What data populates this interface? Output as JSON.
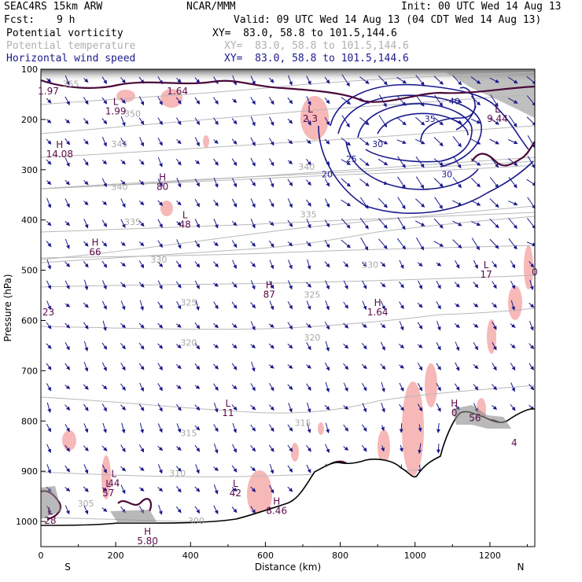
{
  "header": {
    "model": "SEAC4RS 15km ARW",
    "center": "NCAR/MMM",
    "init": "Init: 00 UTC Wed 14 Aug 13",
    "fcst_label": "Fcst:",
    "fcst_value": "9 h",
    "valid": "Valid: 09 UTC Wed 14 Aug 13 (04 CDT Wed 14 Aug 13)",
    "fields": [
      {
        "name": "Potential vorticity",
        "xy": "XY=  83.0, 58.8 to 101.5,144.6",
        "color": "#000000"
      },
      {
        "name": "Potential temperature",
        "xy": "XY=  83.0, 58.8 to 101.5,144.6",
        "color": "#b0b0b0"
      },
      {
        "name": "Horizontal wind speed",
        "xy": "XY=  83.0, 58.8 to 101.5,144.6",
        "color": "#1a1a8c"
      }
    ]
  },
  "chart_data": {
    "type": "cross-section",
    "xlabel": "Distance (km)",
    "ylabel": "Pressure (hPa)",
    "xlim": [
      0,
      1320
    ],
    "ylim": [
      1050,
      100
    ],
    "x_ticks": [
      0,
      200,
      400,
      600,
      800,
      1000,
      1200
    ],
    "y_ticks": [
      100,
      200,
      300,
      400,
      500,
      600,
      700,
      800,
      900,
      1000
    ],
    "x_end_labels": {
      "left": "S",
      "right": "N"
    },
    "theta_labels": [
      {
        "text": "355",
        "x": 80,
        "p": 135
      },
      {
        "text": "350",
        "x": 245,
        "p": 195
      },
      {
        "text": "345",
        "x": 210,
        "p": 255
      },
      {
        "text": "340",
        "x": 210,
        "p": 340
      },
      {
        "text": "340",
        "x": 710,
        "p": 300
      },
      {
        "text": "335",
        "x": 245,
        "p": 410
      },
      {
        "text": "335",
        "x": 715,
        "p": 395
      },
      {
        "text": "330",
        "x": 315,
        "p": 485
      },
      {
        "text": "330",
        "x": 880,
        "p": 495
      },
      {
        "text": "325",
        "x": 395,
        "p": 570
      },
      {
        "text": "325",
        "x": 725,
        "p": 555
      },
      {
        "text": "320",
        "x": 395,
        "p": 650
      },
      {
        "text": "320",
        "x": 725,
        "p": 640
      },
      {
        "text": "315",
        "x": 395,
        "p": 830
      },
      {
        "text": "315",
        "x": 700,
        "p": 810
      },
      {
        "text": "310",
        "x": 365,
        "p": 910
      },
      {
        "text": "305",
        "x": 120,
        "p": 970
      },
      {
        "text": "300",
        "x": 415,
        "p": 1005
      }
    ],
    "wind_labels": [
      {
        "text": "40",
        "x": 1105,
        "p": 170
      },
      {
        "text": "35",
        "x": 1040,
        "p": 205
      },
      {
        "text": "30",
        "x": 900,
        "p": 255
      },
      {
        "text": "30",
        "x": 1085,
        "p": 315
      },
      {
        "text": "25",
        "x": 830,
        "p": 285
      },
      {
        "text": "20",
        "x": 765,
        "p": 315
      }
    ],
    "pv_extrema": [
      {
        "letter": "",
        "value": "1.97",
        "x": 20,
        "p": 150
      },
      {
        "letter": "L",
        "value": "1.99",
        "x": 200,
        "p": 190
      },
      {
        "letter": "",
        "value": "1.64",
        "x": 365,
        "p": 150
      },
      {
        "letter": "L",
        "value": "2.3",
        "x": 720,
        "p": 205
      },
      {
        "letter": "L",
        "value": "9.44",
        "x": 1220,
        "p": 205
      },
      {
        "letter": "H",
        "value": "14.08",
        "x": 50,
        "p": 275
      },
      {
        "letter": "H",
        "value": "80",
        "x": 325,
        "p": 340
      },
      {
        "letter": "L",
        "value": "48",
        "x": 385,
        "p": 415
      },
      {
        "letter": "H",
        "value": "66",
        "x": 145,
        "p": 470
      },
      {
        "letter": "H",
        "value": "87",
        "x": 610,
        "p": 555
      },
      {
        "letter": "H",
        "value": "1.64",
        "x": 900,
        "p": 590
      },
      {
        "letter": "L",
        "value": "17",
        "x": 1190,
        "p": 515
      },
      {
        "letter": "",
        "value": "0",
        "x": 1320,
        "p": 510
      },
      {
        "letter": "",
        "value": "23",
        "x": 20,
        "p": 590
      },
      {
        "letter": "L",
        "value": "11",
        "x": 500,
        "p": 790
      },
      {
        "letter": "H",
        "value": "0",
        "x": 1105,
        "p": 790
      },
      {
        "letter": "",
        "value": "56",
        "x": 1160,
        "p": 800
      },
      {
        "letter": "L",
        "value": "44",
        "x": 195,
        "p": 930
      },
      {
        "letter": "L",
        "value": "57",
        "x": 180,
        "p": 950
      },
      {
        "letter": "L",
        "value": "42",
        "x": 520,
        "p": 950
      },
      {
        "letter": "H",
        "value": "8.46",
        "x": 630,
        "p": 985
      },
      {
        "letter": "L",
        "value": "28",
        "x": 25,
        "p": 1005
      },
      {
        "letter": "H",
        "value": "5.80",
        "x": 285,
        "p": 1045
      },
      {
        "letter": "",
        "value": "4",
        "x": 1265,
        "p": 850
      }
    ]
  }
}
